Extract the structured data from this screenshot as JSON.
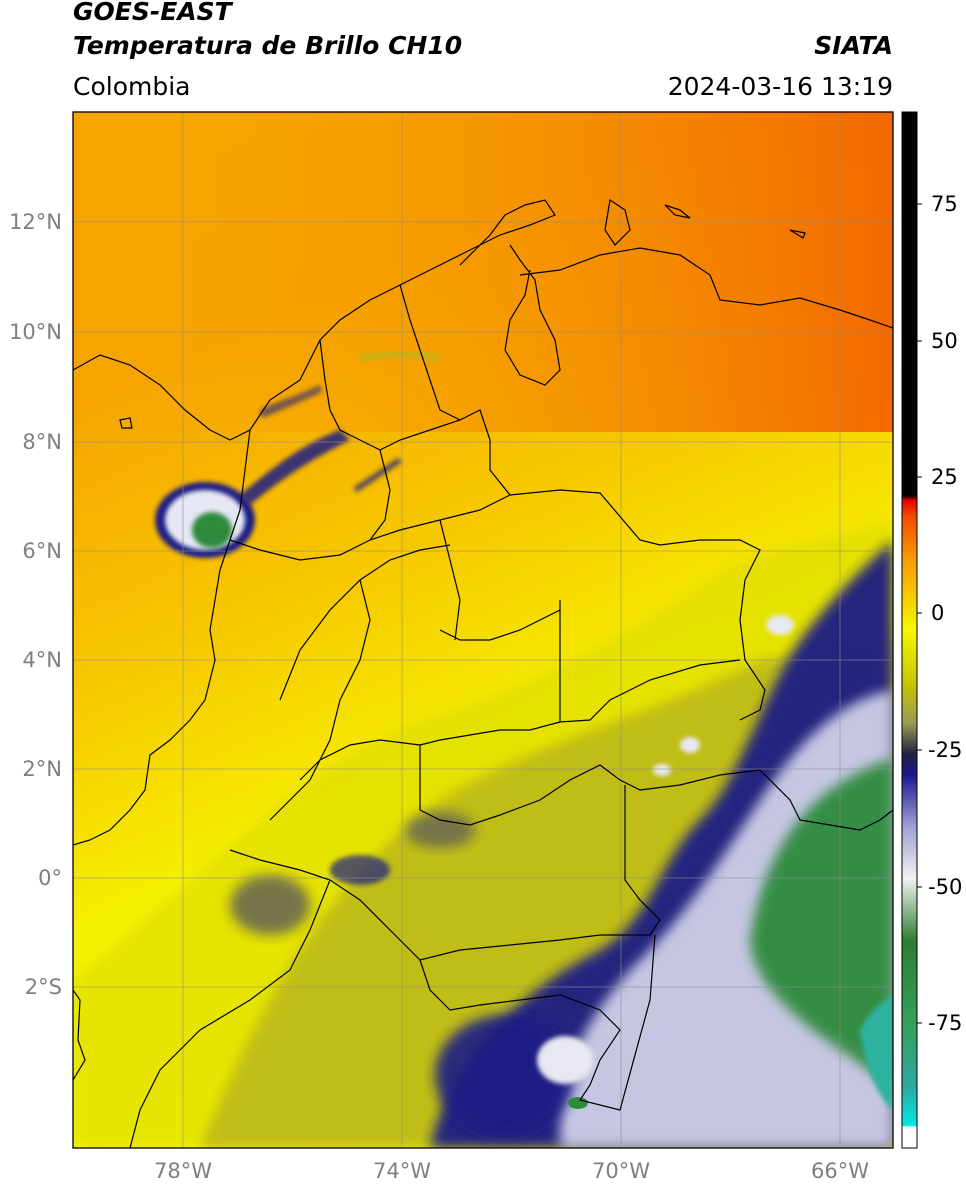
{
  "header": {
    "satellite": "GOES-EAST",
    "product": "Temperatura de Brillo CH10",
    "brand": "SIATA",
    "region": "Colombia",
    "timestamp": "2024-03-16 13:19"
  },
  "map": {
    "lon_range": [
      -80,
      -65
    ],
    "lat_range": [
      -5,
      14
    ],
    "lon_ticks": [
      -78,
      -74,
      -70,
      -66
    ],
    "lon_tick_labels": [
      "78°W",
      "74°W",
      "70°W",
      "66°W"
    ],
    "lat_ticks": [
      12,
      10,
      8,
      6,
      4,
      2,
      0,
      -2
    ],
    "lat_tick_labels": [
      "12°N",
      "10°N",
      "8°N",
      "6°N",
      "4°N",
      "2°N",
      "0°",
      "2°S"
    ],
    "grid": true
  },
  "colorbar": {
    "ticks": [
      75,
      50,
      25,
      0,
      -25,
      -50,
      -75
    ],
    "tick_labels": [
      "75",
      "50",
      "25",
      "0",
      "-25",
      "-50",
      "-75"
    ],
    "range": [
      -95,
      90
    ]
  },
  "colors": {
    "orange": "#f7a500",
    "red_orange": "#f45a00",
    "yellow": "#f7f700",
    "olive": "#b4b419",
    "navy": "#14147f",
    "green": "#2e8b3c",
    "cyan": "#00e6e6"
  }
}
